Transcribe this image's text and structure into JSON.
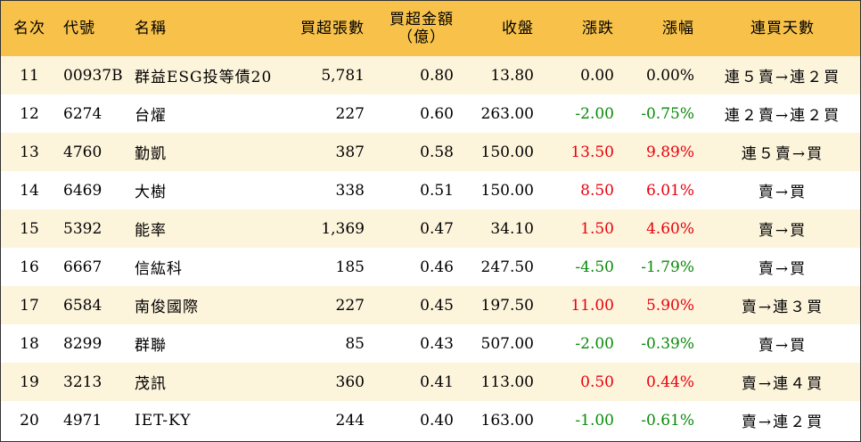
{
  "header": {
    "rank": "名次",
    "code": "代號",
    "name": "名稱",
    "net_buy_lots": "買超張數",
    "net_buy_amount_line1": "買超金額",
    "net_buy_amount_line2": "（億）",
    "close": "收盤",
    "change": "漲跌",
    "change_pct": "漲幅",
    "consecutive_days": "連買天數"
  },
  "colors": {
    "header_bg": "#f7c14a",
    "odd_row_bg": "#fdf4dc",
    "up": "#e8000b",
    "down": "#0a8a0a"
  },
  "rows": [
    {
      "rank": "11",
      "code": "00937B",
      "name": "群益ESG投等債20",
      "lots": "5,781",
      "amount": "0.80",
      "close": "13.80",
      "change": "0.00",
      "pct": "0.00%",
      "days": "連５賣→連２買",
      "dir": "flat"
    },
    {
      "rank": "12",
      "code": "6274",
      "name": "台燿",
      "lots": "227",
      "amount": "0.60",
      "close": "263.00",
      "change": "-2.00",
      "pct": "-0.75%",
      "days": "連２賣→連２買",
      "dir": "down"
    },
    {
      "rank": "13",
      "code": "4760",
      "name": "勤凱",
      "lots": "387",
      "amount": "0.58",
      "close": "150.00",
      "change": "13.50",
      "pct": "9.89%",
      "days": "連５賣→買",
      "dir": "up"
    },
    {
      "rank": "14",
      "code": "6469",
      "name": "大樹",
      "lots": "338",
      "amount": "0.51",
      "close": "150.00",
      "change": "8.50",
      "pct": "6.01%",
      "days": "賣→買",
      "dir": "up"
    },
    {
      "rank": "15",
      "code": "5392",
      "name": "能率",
      "lots": "1,369",
      "amount": "0.47",
      "close": "34.10",
      "change": "1.50",
      "pct": "4.60%",
      "days": "賣→買",
      "dir": "up"
    },
    {
      "rank": "16",
      "code": "6667",
      "name": "信紘科",
      "lots": "185",
      "amount": "0.46",
      "close": "247.50",
      "change": "-4.50",
      "pct": "-1.79%",
      "days": "賣→買",
      "dir": "down"
    },
    {
      "rank": "17",
      "code": "6584",
      "name": "南俊國際",
      "lots": "227",
      "amount": "0.45",
      "close": "197.50",
      "change": "11.00",
      "pct": "5.90%",
      "days": "賣→連３買",
      "dir": "up"
    },
    {
      "rank": "18",
      "code": "8299",
      "name": "群聯",
      "lots": "85",
      "amount": "0.43",
      "close": "507.00",
      "change": "-2.00",
      "pct": "-0.39%",
      "days": "賣→買",
      "dir": "down"
    },
    {
      "rank": "19",
      "code": "3213",
      "name": "茂訊",
      "lots": "360",
      "amount": "0.41",
      "close": "113.00",
      "change": "0.50",
      "pct": "0.44%",
      "days": "賣→連４買",
      "dir": "up"
    },
    {
      "rank": "20",
      "code": "4971",
      "name": "IET-KY",
      "lots": "244",
      "amount": "0.40",
      "close": "163.00",
      "change": "-1.00",
      "pct": "-0.61%",
      "days": "賣→連２買",
      "dir": "down"
    }
  ]
}
